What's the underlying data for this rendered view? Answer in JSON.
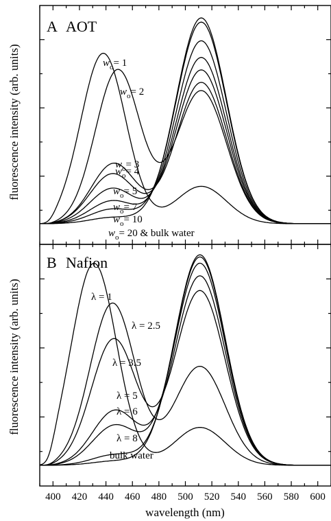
{
  "chart_data": [
    {
      "type": "line",
      "panel": "A",
      "title": "AOT",
      "xlabel": "",
      "ylabel": "fluorescence intensity (arb. units)",
      "xlim": [
        390,
        610
      ],
      "ylim": [
        0,
        1.05
      ],
      "grid": false,
      "series": [
        {
          "name": "wo = 1",
          "label_main": "w",
          "label_sub": "o",
          "label_rest": "= 1",
          "blue_amp": 0.82,
          "blue_center": 438,
          "green_amp": 0.18,
          "green_center": 512
        },
        {
          "name": "wo = 2",
          "label_main": "w",
          "label_sub": "o",
          "label_rest": "= 2",
          "blue_amp": 0.74,
          "blue_center": 449,
          "green_amp": 0.64,
          "green_center": 512
        },
        {
          "name": "wo = 3",
          "label_main": "w",
          "label_sub": "o",
          "label_rest": "= 3",
          "blue_amp": 0.29,
          "blue_center": 446,
          "green_amp": 0.68,
          "green_center": 512
        },
        {
          "name": "wo = 4",
          "label_main": "w",
          "label_sub": "o",
          "label_rest": "= 4",
          "blue_amp": 0.24,
          "blue_center": 445,
          "green_amp": 0.74,
          "green_center": 512
        },
        {
          "name": "wo = 5",
          "label_main": "w",
          "label_sub": "o",
          "label_rest": "= 5",
          "blue_amp": 0.17,
          "blue_center": 445,
          "green_amp": 0.8,
          "green_center": 512
        },
        {
          "name": "wo = 7",
          "label_main": "w",
          "label_sub": "o",
          "label_rest": "= 7",
          "blue_amp": 0.11,
          "blue_center": 445,
          "green_amp": 0.88,
          "green_center": 512
        },
        {
          "name": "wo = 10",
          "label_main": "w",
          "label_sub": "o",
          "label_rest": "= 10",
          "blue_amp": 0.07,
          "blue_center": 445,
          "green_amp": 0.97,
          "green_center": 512
        },
        {
          "name": "wo = 20 & bulk water",
          "label_main": "w",
          "label_sub": "o",
          "label_rest": "= 20 & bulk water",
          "blue_amp": 0.03,
          "blue_center": 445,
          "green_amp": 0.99,
          "green_center": 512
        }
      ]
    },
    {
      "type": "line",
      "panel": "B",
      "title": "Nafion",
      "xlabel": "wavelength (nm)",
      "ylabel": "fluorescence intensity (arb. units)",
      "xlim": [
        390,
        610
      ],
      "ylim": [
        0,
        1.05
      ],
      "xticks": [
        400,
        420,
        440,
        460,
        480,
        500,
        520,
        540,
        560,
        580,
        600
      ],
      "grid": false,
      "series": [
        {
          "name": "λ = 1",
          "label_main": "λ",
          "label_sub": "",
          "label_rest": "= 1",
          "blue_amp": 0.96,
          "blue_center": 431,
          "green_amp": 0.18,
          "green_center": 511
        },
        {
          "name": "λ = 2.5",
          "label_main": "λ",
          "label_sub": "",
          "label_rest": "= 2.5",
          "blue_amp": 0.77,
          "blue_center": 445,
          "green_amp": 0.47,
          "green_center": 511
        },
        {
          "name": "λ = 3.5",
          "label_main": "λ",
          "label_sub": "",
          "label_rest": "= 3.5",
          "blue_amp": 0.6,
          "blue_center": 446,
          "green_amp": 0.83,
          "green_center": 511
        },
        {
          "name": "λ = 5",
          "label_main": "λ",
          "label_sub": "",
          "label_rest": "= 5",
          "blue_amp": 0.26,
          "blue_center": 447,
          "green_amp": 0.9,
          "green_center": 511
        },
        {
          "name": "λ = 6",
          "label_main": "λ",
          "label_sub": "",
          "label_rest": "= 6",
          "blue_amp": 0.19,
          "blue_center": 447,
          "green_amp": 0.96,
          "green_center": 511
        },
        {
          "name": "λ = 8",
          "label_main": "λ",
          "label_sub": "",
          "label_rest": "= 8",
          "blue_amp": 0.05,
          "blue_center": 447,
          "green_amp": 0.99,
          "green_center": 511
        },
        {
          "name": "bulk water",
          "label_main": "bulk water",
          "label_sub": "",
          "label_rest": "",
          "blue_amp": 0.02,
          "blue_center": 447,
          "green_amp": 1.0,
          "green_center": 511
        }
      ]
    }
  ]
}
